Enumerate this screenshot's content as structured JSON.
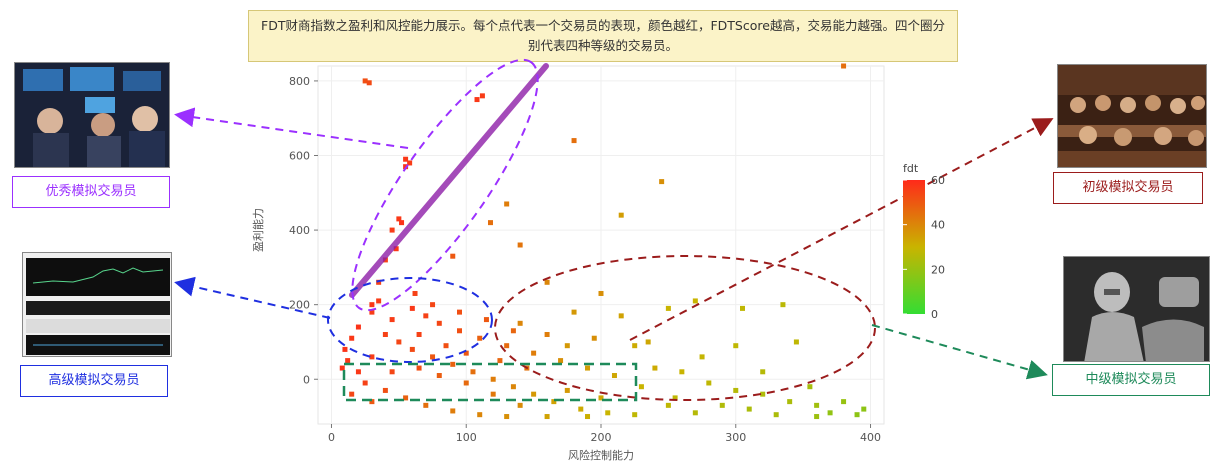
{
  "caption": "FDT财商指数之盈利和风控能力展示。每个点代表一个交易员的表现，颜色越红，FDTScore越高，交易能力越强。四个圈分别代表四种等级的交易员。",
  "labels": {
    "excellent": "优秀模拟交易员",
    "advanced": "高级模拟交易员",
    "beginner": "初级模拟交易员",
    "intermediate": "中级模拟交易员"
  },
  "colors": {
    "excellent": "#9b30ff",
    "advanced": "#1f2fe0",
    "beginner": "#9b1c1c",
    "intermediate": "#1e8a5a"
  },
  "chart_data": {
    "type": "scatter",
    "xlabel": "风险控制能力",
    "ylabel": "盈利能力",
    "xlim": [
      -10,
      410
    ],
    "ylim": [
      -120,
      840
    ],
    "xticks": [
      0,
      100,
      200,
      300,
      400
    ],
    "yticks": [
      0,
      200,
      400,
      600,
      800
    ],
    "legend": {
      "title": "fdt",
      "ticks": [
        0,
        20,
        40,
        60
      ],
      "range": [
        0,
        60
      ],
      "placement": "right"
    },
    "points": [
      [
        55,
        570,
        58
      ],
      [
        55,
        590,
        57
      ],
      [
        58,
        580,
        56
      ],
      [
        50,
        430,
        57
      ],
      [
        52,
        420,
        58
      ],
      [
        45,
        400,
        56
      ],
      [
        40,
        320,
        55
      ],
      [
        30,
        200,
        57
      ],
      [
        30,
        180,
        56
      ],
      [
        35,
        260,
        55
      ],
      [
        48,
        350,
        57
      ],
      [
        108,
        750,
        57
      ],
      [
        112,
        760,
        56
      ],
      [
        25,
        800,
        52
      ],
      [
        28,
        795,
        53
      ],
      [
        180,
        640,
        45
      ],
      [
        245,
        530,
        38
      ],
      [
        215,
        440,
        35
      ],
      [
        130,
        470,
        42
      ],
      [
        118,
        420,
        45
      ],
      [
        140,
        360,
        44
      ],
      [
        90,
        330,
        50
      ],
      [
        160,
        260,
        40
      ],
      [
        200,
        230,
        38
      ],
      [
        270,
        210,
        30
      ],
      [
        250,
        190,
        30
      ],
      [
        305,
        190,
        28
      ],
      [
        335,
        200,
        27
      ],
      [
        180,
        180,
        36
      ],
      [
        215,
        170,
        34
      ],
      [
        140,
        150,
        40
      ],
      [
        175,
        90,
        36
      ],
      [
        225,
        90,
        32
      ],
      [
        300,
        90,
        28
      ],
      [
        345,
        100,
        28
      ],
      [
        380,
        840,
        45
      ],
      [
        240,
        30,
        32
      ],
      [
        260,
        20,
        30
      ],
      [
        280,
        -10,
        28
      ],
      [
        300,
        -30,
        26
      ],
      [
        320,
        -40,
        25
      ],
      [
        340,
        -60,
        24
      ],
      [
        360,
        -70,
        22
      ],
      [
        380,
        -60,
        20
      ],
      [
        395,
        -80,
        18
      ],
      [
        370,
        -90,
        19
      ],
      [
        310,
        -80,
        24
      ],
      [
        290,
        -70,
        25
      ],
      [
        255,
        -50,
        28
      ],
      [
        230,
        -20,
        30
      ],
      [
        210,
        10,
        33
      ],
      [
        190,
        30,
        35
      ],
      [
        170,
        50,
        38
      ],
      [
        150,
        70,
        42
      ],
      [
        130,
        90,
        46
      ],
      [
        110,
        110,
        48
      ],
      [
        95,
        130,
        52
      ],
      [
        80,
        150,
        54
      ],
      [
        70,
        170,
        55
      ],
      [
        60,
        190,
        57
      ],
      [
        20,
        140,
        58
      ],
      [
        15,
        110,
        57
      ],
      [
        10,
        80,
        58
      ],
      [
        12,
        50,
        57
      ],
      [
        8,
        30,
        58
      ],
      [
        40,
        120,
        55
      ],
      [
        50,
        100,
        54
      ],
      [
        60,
        80,
        53
      ],
      [
        75,
        60,
        50
      ],
      [
        90,
        40,
        48
      ],
      [
        105,
        20,
        45
      ],
      [
        120,
        0,
        42
      ],
      [
        135,
        -20,
        40
      ],
      [
        150,
        -40,
        36
      ],
      [
        165,
        -60,
        34
      ],
      [
        185,
        -80,
        32
      ],
      [
        205,
        -90,
        30
      ],
      [
        225,
        -95,
        28
      ],
      [
        145,
        30,
        44
      ],
      [
        125,
        50,
        47
      ],
      [
        100,
        70,
        50
      ],
      [
        85,
        90,
        52
      ],
      [
        65,
        120,
        55
      ],
      [
        45,
        160,
        56
      ],
      [
        35,
        210,
        56
      ],
      [
        62,
        230,
        55
      ],
      [
        75,
        200,
        54
      ],
      [
        95,
        180,
        52
      ],
      [
        115,
        160,
        50
      ],
      [
        135,
        130,
        47
      ],
      [
        160,
        120,
        42
      ],
      [
        195,
        110,
        38
      ],
      [
        235,
        100,
        33
      ],
      [
        275,
        60,
        29
      ],
      [
        320,
        20,
        26
      ],
      [
        355,
        -20,
        23
      ],
      [
        30,
        60,
        56
      ],
      [
        20,
        20,
        57
      ],
      [
        25,
        -10,
        55
      ],
      [
        40,
        -30,
        52
      ],
      [
        55,
        -50,
        48
      ],
      [
        70,
        -70,
        45
      ],
      [
        90,
        -85,
        42
      ],
      [
        110,
        -95,
        40
      ],
      [
        130,
        -100,
        38
      ],
      [
        160,
        -100,
        34
      ],
      [
        190,
        -100,
        31
      ],
      [
        30,
        -60,
        50
      ],
      [
        15,
        -40,
        54
      ],
      [
        45,
        20,
        54
      ],
      [
        65,
        30,
        52
      ],
      [
        80,
        10,
        49
      ],
      [
        100,
        -10,
        46
      ],
      [
        120,
        -40,
        43
      ],
      [
        140,
        -70,
        39
      ],
      [
        175,
        -30,
        36
      ],
      [
        200,
        -50,
        33
      ],
      [
        250,
        -70,
        28
      ],
      [
        270,
        -90,
        26
      ],
      [
        330,
        -95,
        24
      ],
      [
        360,
        -100,
        21
      ],
      [
        390,
        -95,
        18
      ]
    ]
  }
}
